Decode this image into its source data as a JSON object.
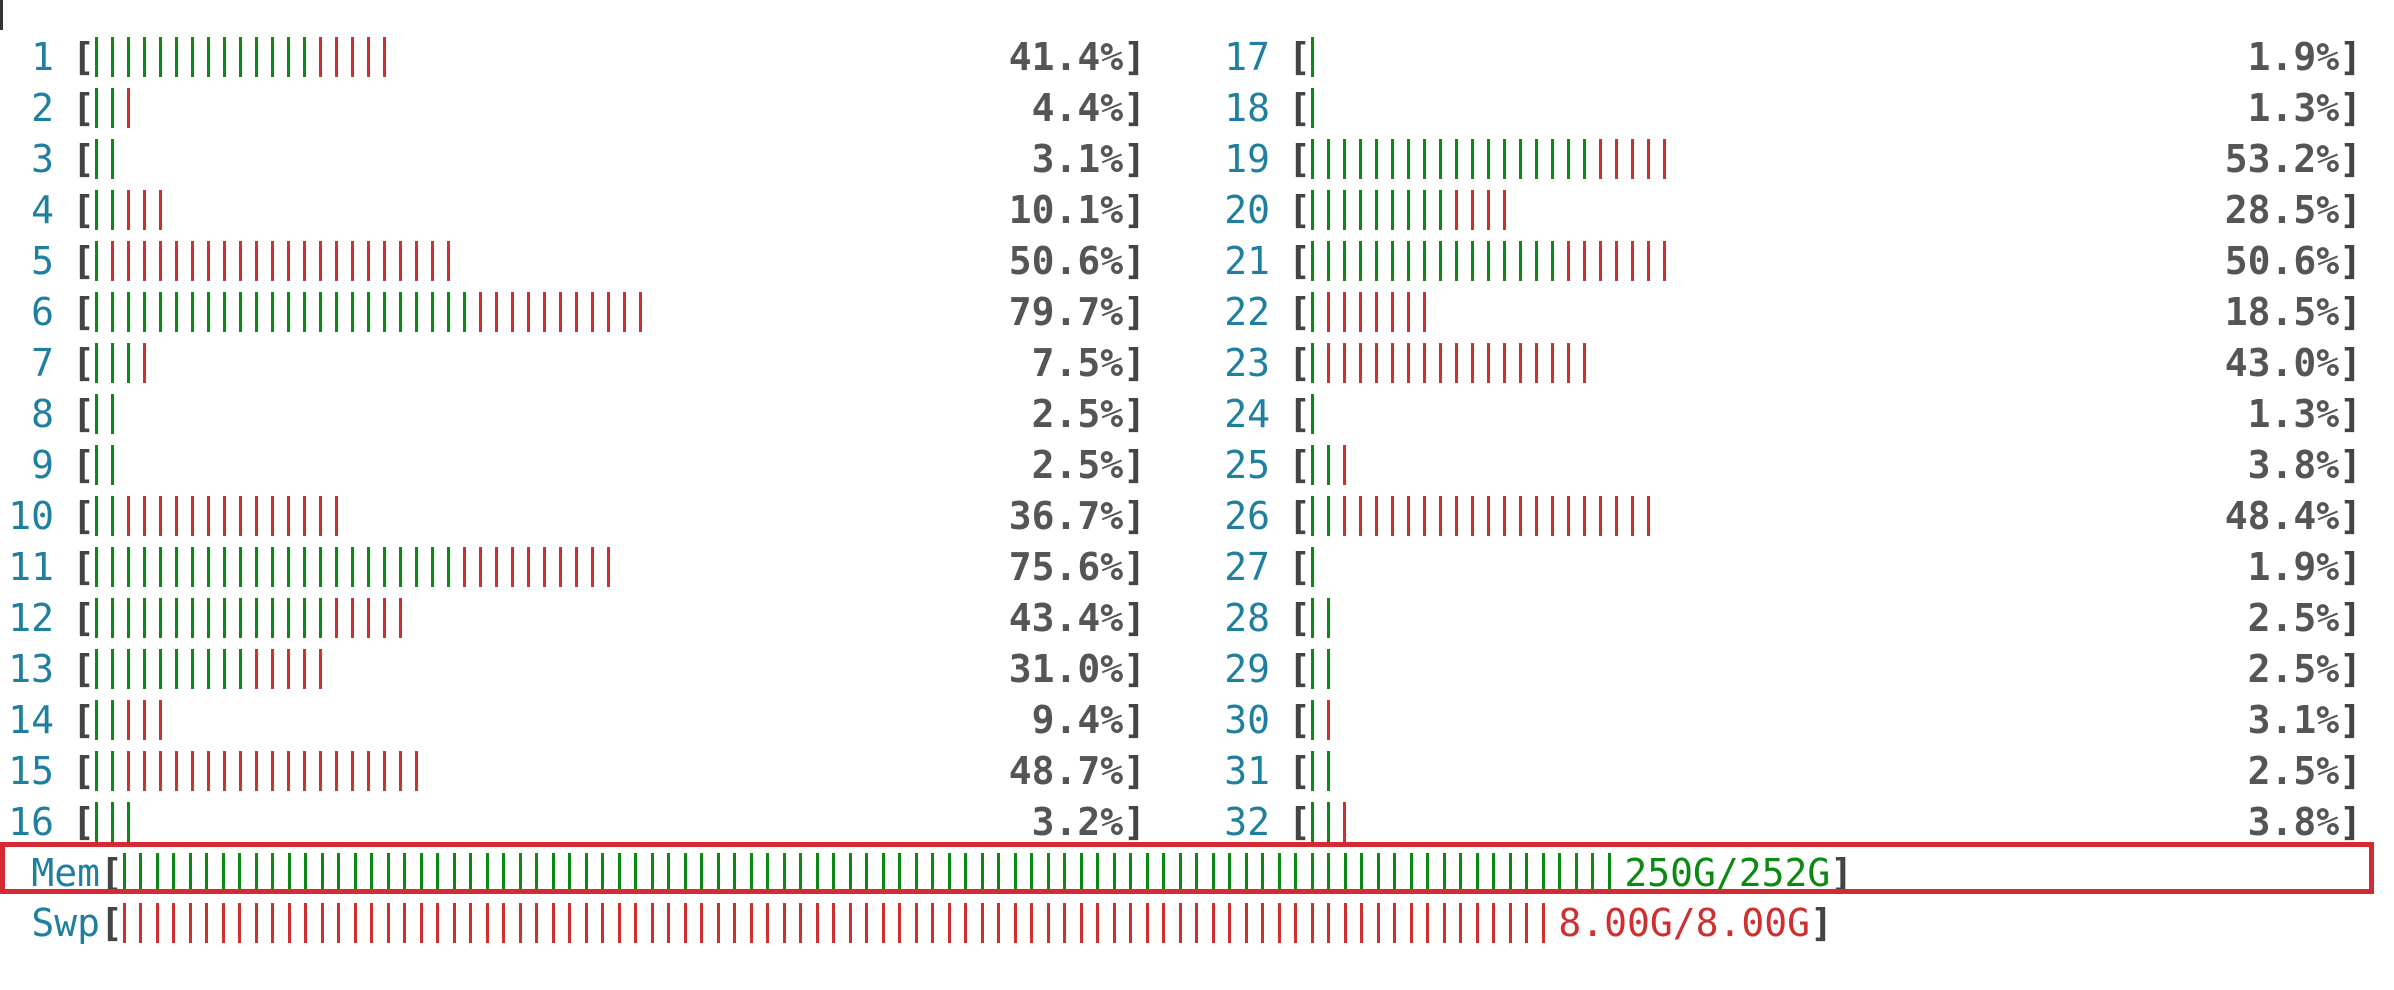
{
  "cpus_left": [
    {
      "id": "1",
      "green": 14,
      "red": 5,
      "percent": "41.4%"
    },
    {
      "id": "2",
      "green": 2,
      "red": 1,
      "percent": "4.4%"
    },
    {
      "id": "3",
      "green": 2,
      "red": 0,
      "percent": "3.1%"
    },
    {
      "id": "4",
      "green": 2,
      "red": 3,
      "percent": "10.1%"
    },
    {
      "id": "5",
      "green": 1,
      "red": 22,
      "percent": "50.6%"
    },
    {
      "id": "6",
      "green": 24,
      "red": 11,
      "percent": "79.7%"
    },
    {
      "id": "7",
      "green": 3,
      "red": 1,
      "percent": "7.5%"
    },
    {
      "id": "8",
      "green": 2,
      "red": 0,
      "percent": "2.5%"
    },
    {
      "id": "9",
      "green": 2,
      "red": 0,
      "percent": "2.5%"
    },
    {
      "id": "10",
      "green": 2,
      "red": 14,
      "percent": "36.7%"
    },
    {
      "id": "11",
      "green": 23,
      "red": 10,
      "percent": "75.6%"
    },
    {
      "id": "12",
      "green": 15,
      "red": 5,
      "percent": "43.4%"
    },
    {
      "id": "13",
      "green": 10,
      "red": 5,
      "percent": "31.0%"
    },
    {
      "id": "14",
      "green": 2,
      "red": 3,
      "percent": "9.4%"
    },
    {
      "id": "15",
      "green": 2,
      "red": 19,
      "percent": "48.7%"
    },
    {
      "id": "16",
      "green": 3,
      "red": 0,
      "percent": "3.2%"
    }
  ],
  "cpus_right": [
    {
      "id": "17",
      "green": 1,
      "red": 0,
      "percent": "1.9%"
    },
    {
      "id": "18",
      "green": 1,
      "red": 0,
      "percent": "1.3%"
    },
    {
      "id": "19",
      "green": 18,
      "red": 5,
      "percent": "53.2%"
    },
    {
      "id": "20",
      "green": 9,
      "red": 4,
      "percent": "28.5%"
    },
    {
      "id": "21",
      "green": 16,
      "red": 7,
      "percent": "50.6%"
    },
    {
      "id": "22",
      "green": 1,
      "red": 7,
      "percent": "18.5%"
    },
    {
      "id": "23",
      "green": 1,
      "red": 17,
      "percent": "43.0%"
    },
    {
      "id": "24",
      "green": 1,
      "red": 0,
      "percent": "1.3%"
    },
    {
      "id": "25",
      "green": 2,
      "red": 1,
      "percent": "3.8%"
    },
    {
      "id": "26",
      "green": 2,
      "red": 20,
      "percent": "48.4%"
    },
    {
      "id": "27",
      "green": 1,
      "red": 0,
      "percent": "1.9%"
    },
    {
      "id": "28",
      "green": 2,
      "red": 0,
      "percent": "2.5%"
    },
    {
      "id": "29",
      "green": 2,
      "red": 0,
      "percent": "2.5%"
    },
    {
      "id": "30",
      "green": 1,
      "red": 1,
      "percent": "3.1%"
    },
    {
      "id": "31",
      "green": 2,
      "red": 0,
      "percent": "2.5%"
    },
    {
      "id": "32",
      "green": 2,
      "red": 1,
      "percent": "3.8%"
    }
  ],
  "memory": {
    "label": "Mem",
    "value": "250G/252G",
    "ticks": 91,
    "color": "#0b8a12"
  },
  "swap": {
    "label": "Swp",
    "value": "8.00G/8.00G",
    "ticks": 87,
    "color": "#d02f2f"
  },
  "colors": {
    "green": "#0b8a12",
    "red": "#d02f2f",
    "cpu_number": "#1f7f9e",
    "highlight": "#d42a33"
  }
}
